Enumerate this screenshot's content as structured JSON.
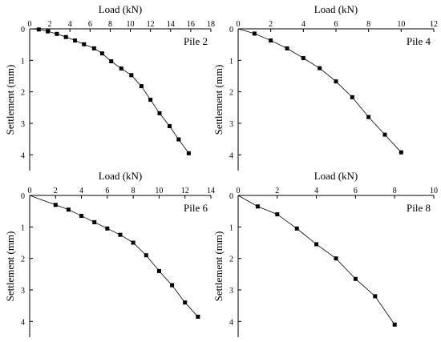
{
  "chart_data": [
    {
      "type": "line",
      "title": "",
      "panel_label": "Pile 2",
      "xlabel": "Load (kN)",
      "ylabel": "Settlement (mm)",
      "x_axis_position": "top",
      "y_inverted": true,
      "xlim": [
        0,
        18
      ],
      "ylim": [
        0,
        4.5
      ],
      "xticks": [
        "0",
        "2",
        "4",
        "6",
        "8",
        "10",
        "12",
        "14",
        "16",
        "18"
      ],
      "yticks": [
        "0",
        "1",
        "2",
        "3",
        "4"
      ],
      "grid": false,
      "marker": "square",
      "series": [
        {
          "x": [
            0,
            0.9,
            1.8,
            2.7,
            3.6,
            4.5,
            5.4,
            6.4,
            7.2,
            8.1,
            9.1,
            10.1,
            11.1,
            12.0,
            12.9,
            13.9,
            14.8,
            15.8
          ],
          "y": [
            0,
            0.02,
            0.08,
            0.16,
            0.26,
            0.37,
            0.49,
            0.62,
            0.78,
            1.03,
            1.26,
            1.47,
            1.82,
            2.25,
            2.68,
            3.09,
            3.51,
            3.95
          ]
        }
      ]
    },
    {
      "type": "line",
      "title": "",
      "panel_label": "Pile 4",
      "xlabel": "Load (kN)",
      "ylabel": "Settlement (mm)",
      "x_axis_position": "top",
      "y_inverted": true,
      "xlim": [
        0,
        12
      ],
      "ylim": [
        0,
        4.5
      ],
      "xticks": [
        "0",
        "2",
        "4",
        "6",
        "8",
        "10",
        "12"
      ],
      "yticks": [
        "0",
        "1",
        "2",
        "3",
        "4"
      ],
      "grid": false,
      "marker": "square",
      "series": [
        {
          "x": [
            0,
            1,
            2,
            3,
            4,
            5,
            6,
            7,
            8,
            9,
            10
          ],
          "y": [
            0,
            0.15,
            0.37,
            0.62,
            0.93,
            1.25,
            1.67,
            2.17,
            2.8,
            3.36,
            3.92
          ]
        }
      ]
    },
    {
      "type": "line",
      "title": "",
      "panel_label": "Pile 6",
      "xlabel": "Load (kN)",
      "ylabel": "Settlement (mm)",
      "x_axis_position": "top",
      "y_inverted": true,
      "xlim": [
        0,
        14
      ],
      "ylim": [
        0,
        4.5
      ],
      "xticks": [
        "0",
        "2",
        "4",
        "6",
        "8",
        "10",
        "12",
        "14"
      ],
      "yticks": [
        "0",
        "1",
        "2",
        "3",
        "4"
      ],
      "grid": false,
      "marker": "square",
      "series": [
        {
          "x": [
            0,
            2,
            3,
            4,
            5,
            6,
            7,
            8,
            9,
            10,
            11,
            12,
            13
          ],
          "y": [
            0,
            0.3,
            0.45,
            0.65,
            0.85,
            1.05,
            1.25,
            1.5,
            1.9,
            2.4,
            2.85,
            3.4,
            3.85
          ]
        }
      ]
    },
    {
      "type": "line",
      "title": "",
      "panel_label": "Pile 8",
      "xlabel": "Load (kN)",
      "ylabel": "Settlement (mm)",
      "x_axis_position": "top",
      "y_inverted": true,
      "xlim": [
        0,
        10
      ],
      "ylim": [
        0,
        4.5
      ],
      "xticks": [
        "0",
        "2",
        "4",
        "6",
        "8",
        "10"
      ],
      "yticks": [
        "0",
        "1",
        "2",
        "3",
        "4"
      ],
      "grid": false,
      "marker": "square",
      "series": [
        {
          "x": [
            0,
            1,
            2,
            3,
            4,
            5,
            6,
            7,
            8
          ],
          "y": [
            0,
            0.35,
            0.6,
            1.05,
            1.55,
            2.0,
            2.65,
            3.2,
            4.1
          ]
        }
      ]
    }
  ]
}
